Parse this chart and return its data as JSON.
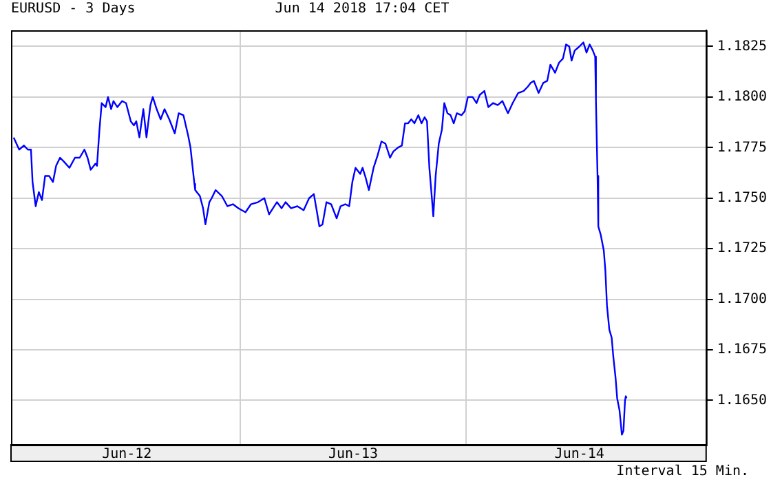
{
  "chart_data": {
    "type": "line",
    "title": "EURUSD - 3 Days",
    "subtitle": "Jun 14 2018 17:04 CET",
    "annotations": [
      "Interval 15 Min."
    ],
    "legend": false,
    "grid": true,
    "marker": "none",
    "line_style": "solid",
    "xlim": [
      "2018-06-11T23:43",
      "2018-06-15T01:26"
    ],
    "xticks": [
      {
        "value": "2018-06-12T12:00",
        "label": "Jun-12"
      },
      {
        "value": "2018-06-13T00:00",
        "label": null
      },
      {
        "value": "2018-06-13T12:00",
        "label": "Jun-13"
      },
      {
        "value": "2018-06-14T00:00",
        "label": null
      },
      {
        "value": "2018-06-14T12:00",
        "label": "Jun-14"
      }
    ],
    "ylim": [
      1.1628,
      1.1833
    ],
    "yticks": [
      {
        "value": 1.165,
        "label": "1.1650"
      },
      1.1675,
      {
        "value": 1.17,
        "label": "1.1700"
      },
      1.1725,
      {
        "value": 1.175,
        "label": "1.1750"
      },
      1.1775,
      {
        "value": 1.18,
        "label": "1.1800"
      },
      1.1825
    ],
    "series": [
      {
        "color": "#0000ff",
        "x": [
          "2018-06-12T00:00",
          "2018-06-12T00:35",
          "2018-06-12T01:05",
          "2018-06-12T01:30",
          "2018-06-12T01:50",
          "2018-06-12T02:00",
          "2018-06-12T02:20",
          "2018-06-12T02:40",
          "2018-06-12T03:00",
          "2018-06-12T03:20",
          "2018-06-12T03:45",
          "2018-06-12T04:10",
          "2018-06-12T04:30",
          "2018-06-12T04:55",
          "2018-06-12T05:20",
          "2018-06-12T05:55",
          "2018-06-12T06:30",
          "2018-06-12T07:00",
          "2018-06-12T07:30",
          "2018-06-12T07:50",
          "2018-06-12T08:10",
          "2018-06-12T08:40",
          "2018-06-12T08:50",
          "2018-06-12T09:05",
          "2018-06-12T09:20",
          "2018-06-12T09:45",
          "2018-06-12T10:00",
          "2018-06-12T10:20",
          "2018-06-12T10:35",
          "2018-06-12T11:00",
          "2018-06-12T11:30",
          "2018-06-12T11:55",
          "2018-06-12T12:25",
          "2018-06-12T12:45",
          "2018-06-12T13:00",
          "2018-06-12T13:20",
          "2018-06-12T13:45",
          "2018-06-12T14:05",
          "2018-06-12T14:30",
          "2018-06-12T14:45",
          "2018-06-12T15:10",
          "2018-06-12T15:35",
          "2018-06-12T16:00",
          "2018-06-12T16:30",
          "2018-06-12T17:05",
          "2018-06-12T17:30",
          "2018-06-12T18:00",
          "2018-06-12T18:30",
          "2018-06-12T18:45",
          "2018-06-12T19:10",
          "2018-06-12T19:15",
          "2018-06-12T19:45",
          "2018-06-12T20:05",
          "2018-06-12T20:20",
          "2018-06-12T20:45",
          "2018-06-12T21:00",
          "2018-06-12T21:25",
          "2018-06-12T22:05",
          "2018-06-12T22:40",
          "2018-06-12T23:15",
          "2018-06-12T23:50",
          "2018-06-13T00:35",
          "2018-06-13T01:10",
          "2018-06-13T01:55",
          "2018-06-13T02:35",
          "2018-06-13T03:05",
          "2018-06-13T03:30",
          "2018-06-13T03:55",
          "2018-06-13T04:25",
          "2018-06-13T04:50",
          "2018-06-13T05:25",
          "2018-06-13T06:05",
          "2018-06-13T06:45",
          "2018-06-13T07:20",
          "2018-06-13T07:50",
          "2018-06-13T08:10",
          "2018-06-13T08:25",
          "2018-06-13T08:45",
          "2018-06-13T09:10",
          "2018-06-13T09:40",
          "2018-06-13T10:15",
          "2018-06-13T10:40",
          "2018-06-13T11:10",
          "2018-06-13T11:35",
          "2018-06-13T11:55",
          "2018-06-13T12:15",
          "2018-06-13T12:45",
          "2018-06-13T13:00",
          "2018-06-13T13:20",
          "2018-06-13T13:40",
          "2018-06-13T14:10",
          "2018-06-13T14:35",
          "2018-06-13T15:00",
          "2018-06-13T15:25",
          "2018-06-13T15:55",
          "2018-06-13T16:15",
          "2018-06-13T16:45",
          "2018-06-13T17:10",
          "2018-06-13T17:30",
          "2018-06-13T17:50",
          "2018-06-13T18:10",
          "2018-06-13T18:30",
          "2018-06-13T18:55",
          "2018-06-13T19:15",
          "2018-06-13T19:35",
          "2018-06-13T19:50",
          "2018-06-13T20:05",
          "2018-06-13T20:20",
          "2018-06-13T20:30",
          "2018-06-13T20:45",
          "2018-06-13T21:05",
          "2018-06-13T21:25",
          "2018-06-13T21:40",
          "2018-06-13T22:00",
          "2018-06-13T22:20",
          "2018-06-13T22:40",
          "2018-06-13T23:00",
          "2018-06-13T23:30",
          "2018-06-13T23:50",
          "2018-06-14T00:10",
          "2018-06-14T00:40",
          "2018-06-14T01:05",
          "2018-06-14T01:25",
          "2018-06-14T01:55",
          "2018-06-14T02:20",
          "2018-06-14T02:50",
          "2018-06-14T03:20",
          "2018-06-14T03:50",
          "2018-06-14T04:25",
          "2018-06-14T04:55",
          "2018-06-14T05:30",
          "2018-06-14T06:05",
          "2018-06-14T06:30",
          "2018-06-14T06:50",
          "2018-06-14T07:10",
          "2018-06-14T07:40",
          "2018-06-14T08:10",
          "2018-06-14T08:35",
          "2018-06-14T08:55",
          "2018-06-14T09:25",
          "2018-06-14T09:50",
          "2018-06-14T10:15",
          "2018-06-14T10:35",
          "2018-06-14T10:55",
          "2018-06-14T11:10",
          "2018-06-14T11:30",
          "2018-06-14T12:00",
          "2018-06-14T12:25",
          "2018-06-14T12:45",
          "2018-06-14T13:05",
          "2018-06-14T13:25",
          "2018-06-14T13:40",
          "2018-06-14T13:45",
          "2018-06-14T13:55",
          "2018-06-14T14:00",
          "2018-06-14T14:15",
          "2018-06-14T14:35",
          "2018-06-14T14:45",
          "2018-06-14T14:55",
          "2018-06-14T15:10",
          "2018-06-14T15:25",
          "2018-06-14T15:35",
          "2018-06-14T15:50",
          "2018-06-14T16:00",
          "2018-06-14T16:15",
          "2018-06-14T16:30",
          "2018-06-14T16:40",
          "2018-06-14T16:50",
          "2018-06-14T16:55",
          "2018-06-14T17:00"
        ],
        "values": [
          1.178,
          1.1774,
          1.1776,
          1.1774,
          1.1774,
          1.1758,
          1.1746,
          1.1753,
          1.1749,
          1.1761,
          1.1761,
          1.1758,
          1.1766,
          1.177,
          1.1768,
          1.1765,
          1.177,
          1.177,
          1.1774,
          1.177,
          1.1764,
          1.1767,
          1.1766,
          1.1783,
          1.1797,
          1.1795,
          1.18,
          1.1794,
          1.1798,
          1.1795,
          1.1798,
          1.1797,
          1.1788,
          1.1786,
          1.1788,
          1.178,
          1.1794,
          1.178,
          1.1796,
          1.18,
          1.1794,
          1.1789,
          1.1794,
          1.1789,
          1.1782,
          1.1792,
          1.1791,
          1.1781,
          1.1775,
          1.1757,
          1.1754,
          1.1751,
          1.1745,
          1.1737,
          1.1748,
          1.175,
          1.1754,
          1.1751,
          1.1746,
          1.1747,
          1.1745,
          1.1743,
          1.1747,
          1.1748,
          1.175,
          1.1742,
          1.1745,
          1.1748,
          1.1745,
          1.1748,
          1.1745,
          1.1746,
          1.1744,
          1.175,
          1.1752,
          1.1743,
          1.1736,
          1.1737,
          1.1748,
          1.1747,
          1.174,
          1.1746,
          1.1747,
          1.1746,
          1.1758,
          1.1765,
          1.1762,
          1.1765,
          1.176,
          1.1754,
          1.1765,
          1.1771,
          1.1778,
          1.1777,
          1.177,
          1.1773,
          1.1775,
          1.1776,
          1.1787,
          1.1787,
          1.1789,
          1.1787,
          1.1791,
          1.1787,
          1.179,
          1.1788,
          1.1765,
          1.1751,
          1.1741,
          1.1761,
          1.1777,
          1.1784,
          1.1797,
          1.1792,
          1.1791,
          1.1787,
          1.1792,
          1.1791,
          1.1793,
          1.18,
          1.18,
          1.1797,
          1.1801,
          1.1803,
          1.1795,
          1.1797,
          1.1796,
          1.1798,
          1.1792,
          1.1797,
          1.1802,
          1.1803,
          1.1805,
          1.1807,
          1.1808,
          1.1802,
          1.1807,
          1.1808,
          1.1816,
          1.1812,
          1.1817,
          1.1819,
          1.1826,
          1.1825,
          1.1818,
          1.1823,
          1.1825,
          1.1827,
          1.1822,
          1.1826,
          1.1823,
          1.182,
          1.1798,
          1.1761,
          1.1736,
          1.1732,
          1.1724,
          1.1714,
          1.1697,
          1.1685,
          1.1681,
          1.1672,
          1.1661,
          1.1651,
          1.1645,
          1.1633,
          1.1635,
          1.165,
          1.1652,
          1.1651
        ]
      }
    ]
  }
}
